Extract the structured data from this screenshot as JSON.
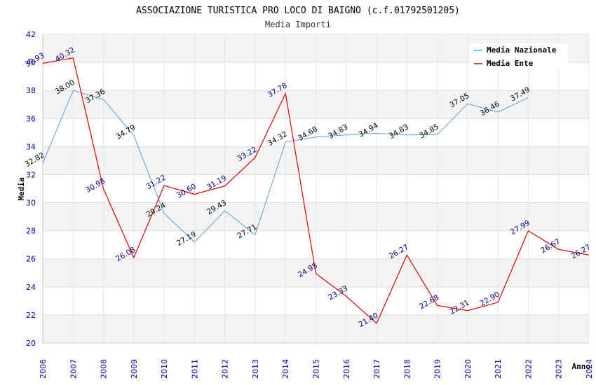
{
  "chart_data": {
    "type": "line",
    "title": "ASSOCIAZIONE TURISTICA PRO LOCO DI BAIGNO (c.f.01792501205)",
    "subtitle": "Media Importi",
    "xlabel": "Anno",
    "ylabel": "Media",
    "ylim": [
      20,
      42
    ],
    "yticks": [
      20,
      22,
      24,
      26,
      28,
      30,
      32,
      34,
      36,
      38,
      40,
      42
    ],
    "grid": true,
    "legend_position": "top-right",
    "categories": [
      "2006",
      "2007",
      "2008",
      "2009",
      "2010",
      "2011",
      "2012",
      "2013",
      "2014",
      "2015",
      "2016",
      "2017",
      "2018",
      "2019",
      "2020",
      "2021",
      "2022",
      "2023",
      "2024"
    ],
    "series": [
      {
        "name": "Media Nazionale",
        "color": "#5aa0e0",
        "label_color": "#000000",
        "values": [
          32.82,
          38.0,
          37.36,
          34.79,
          29.24,
          27.19,
          29.43,
          27.71,
          34.32,
          34.68,
          34.83,
          34.94,
          34.83,
          34.85,
          37.05,
          36.46,
          37.49,
          null,
          null
        ],
        "labels": [
          "32.82",
          "38.00",
          "37.36",
          "34.79",
          "29.24",
          "27.19",
          "29.43",
          "27.71",
          "34.32",
          "34.68",
          "34.83",
          "34.94",
          "34.83",
          "34.85",
          "37.05",
          "36.46",
          "37.49",
          null,
          null
        ]
      },
      {
        "name": "Media Ente",
        "color": "#dd0000",
        "label_color": "#000088",
        "values": [
          39.93,
          40.32,
          30.98,
          26.08,
          31.22,
          30.6,
          31.19,
          33.22,
          37.78,
          24.95,
          23.33,
          21.4,
          26.27,
          22.68,
          22.31,
          22.9,
          27.99,
          26.67,
          26.27
        ],
        "labels": [
          "39.93",
          "40.32",
          "30.98",
          "26.08",
          "31.22",
          "30.60",
          "31.19",
          "33.22",
          "37.78",
          "24.95",
          "23.33",
          "21.40",
          "26.27",
          "22.68",
          "22.31",
          "22.90",
          "27.99",
          "26.67",
          "26.27"
        ]
      }
    ]
  }
}
